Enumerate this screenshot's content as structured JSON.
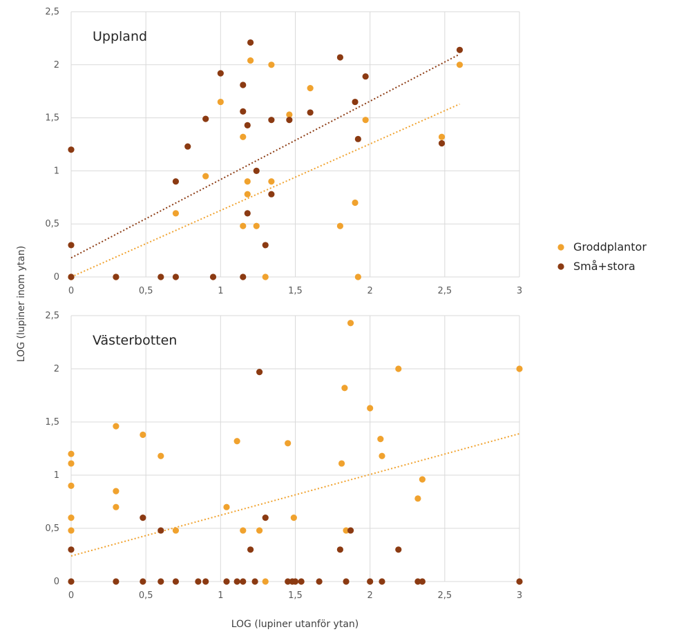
{
  "chart_data": {
    "type": "scatter",
    "xlabel": "LOG (lupiner utanför ytan)",
    "ylabel": "LOG (lupiner inom ytan)",
    "legend": {
      "placement": "right",
      "entries": [
        {
          "name": "Groddplantor",
          "color": "#F0A22E"
        },
        {
          "name": "Små+stora",
          "color": "#8B3A12"
        }
      ]
    },
    "grid": true,
    "panels": [
      {
        "title": "Uppland",
        "xlim": [
          0,
          3
        ],
        "ylim": [
          0,
          2.5
        ],
        "x_ticks": [
          "0",
          "0,5",
          "1",
          "1,5",
          "2",
          "2,5",
          "3"
        ],
        "y_ticks": [
          "0",
          "0,5",
          "1",
          "1,5",
          "2",
          "2,5"
        ],
        "series": [
          {
            "name": "Groddplantor",
            "color": "#F0A22E",
            "points": [
              [
                0,
                0
              ],
              [
                0.3,
                0
              ],
              [
                0.7,
                0.6
              ],
              [
                0.9,
                0.95
              ],
              [
                1,
                1.65
              ],
              [
                1.15,
                1.32
              ],
              [
                1.15,
                0.48
              ],
              [
                1.18,
                0.9
              ],
              [
                1.18,
                0.78
              ],
              [
                1.2,
                2.04
              ],
              [
                1.24,
                0.48
              ],
              [
                1.3,
                0
              ],
              [
                1.34,
                2.0
              ],
              [
                1.34,
                0.9
              ],
              [
                1.46,
                1.53
              ],
              [
                1.6,
                1.78
              ],
              [
                1.8,
                0.48
              ],
              [
                1.9,
                0.7
              ],
              [
                1.92,
                0
              ],
              [
                1.97,
                1.48
              ],
              [
                2.48,
                1.32
              ],
              [
                2.6,
                2.0
              ]
            ],
            "trendline": [
              [
                0,
                0
              ],
              [
                2.6,
                1.63
              ]
            ]
          },
          {
            "name": "Små+stora",
            "color": "#8B3A12",
            "points": [
              [
                0,
                1.2
              ],
              [
                0,
                0.3
              ],
              [
                0,
                0
              ],
              [
                0.3,
                0
              ],
              [
                0.6,
                0
              ],
              [
                0.7,
                0.9
              ],
              [
                0.7,
                0
              ],
              [
                0.78,
                1.23
              ],
              [
                0.9,
                1.49
              ],
              [
                0.95,
                0
              ],
              [
                1,
                1.92
              ],
              [
                1.15,
                1.81
              ],
              [
                1.15,
                1.56
              ],
              [
                1.15,
                0
              ],
              [
                1.18,
                1.43
              ],
              [
                1.18,
                0.6
              ],
              [
                1.2,
                2.21
              ],
              [
                1.24,
                1.0
              ],
              [
                1.3,
                0.3
              ],
              [
                1.34,
                1.48
              ],
              [
                1.34,
                0.78
              ],
              [
                1.46,
                1.48
              ],
              [
                1.6,
                1.55
              ],
              [
                1.8,
                2.07
              ],
              [
                1.9,
                1.65
              ],
              [
                1.92,
                1.3
              ],
              [
                1.97,
                1.89
              ],
              [
                2.48,
                1.26
              ],
              [
                2.6,
                2.14
              ]
            ],
            "trendline": [
              [
                0,
                0.18
              ],
              [
                2.6,
                2.1
              ]
            ]
          }
        ]
      },
      {
        "title": "Västerbotten",
        "xlim": [
          0,
          3
        ],
        "ylim": [
          0,
          2.5
        ],
        "x_ticks": [
          "0",
          "0,5",
          "1",
          "1,5",
          "2",
          "2,5",
          "3"
        ],
        "y_ticks": [
          "0",
          "0,5",
          "1",
          "1,5",
          "2",
          "2,5"
        ],
        "series": [
          {
            "name": "Groddplantor",
            "color": "#F0A22E",
            "points": [
              [
                0,
                1.2
              ],
              [
                0,
                1.11
              ],
              [
                0,
                0.9
              ],
              [
                0,
                0.6
              ],
              [
                0,
                0.48
              ],
              [
                0.3,
                1.46
              ],
              [
                0.3,
                0.85
              ],
              [
                0.3,
                0.7
              ],
              [
                0.48,
                1.38
              ],
              [
                0.6,
                1.18
              ],
              [
                0.7,
                0.48
              ],
              [
                1.04,
                0.7
              ],
              [
                1.11,
                1.32
              ],
              [
                1.15,
                0.48
              ],
              [
                1.26,
                0.48
              ],
              [
                1.3,
                0
              ],
              [
                1.45,
                1.3
              ],
              [
                1.49,
                0.6
              ],
              [
                1.81,
                1.11
              ],
              [
                1.83,
                1.82
              ],
              [
                1.84,
                0.48
              ],
              [
                1.87,
                2.43
              ],
              [
                2,
                1.63
              ],
              [
                2.07,
                1.34
              ],
              [
                2.08,
                1.18
              ],
              [
                2.19,
                2.0
              ],
              [
                2.32,
                0.78
              ],
              [
                2.35,
                0.96
              ],
              [
                3,
                2.0
              ]
            ],
            "trendline": [
              [
                0,
                0.24
              ],
              [
                3,
                1.39
              ]
            ]
          },
          {
            "name": "Små+stora",
            "color": "#8B3A12",
            "points": [
              [
                0,
                0.3
              ],
              [
                0,
                0
              ],
              [
                0.3,
                0
              ],
              [
                0.48,
                0.6
              ],
              [
                0.48,
                0
              ],
              [
                0.6,
                0.48
              ],
              [
                0.6,
                0
              ],
              [
                0.7,
                0
              ],
              [
                0.85,
                0
              ],
              [
                0.9,
                0
              ],
              [
                1.04,
                0
              ],
              [
                1.11,
                0
              ],
              [
                1.15,
                0
              ],
              [
                1.2,
                0.3
              ],
              [
                1.23,
                0
              ],
              [
                1.26,
                1.97
              ],
              [
                1.3,
                0.6
              ],
              [
                1.45,
                0
              ],
              [
                1.48,
                0
              ],
              [
                1.5,
                0
              ],
              [
                1.54,
                0
              ],
              [
                1.66,
                0
              ],
              [
                1.8,
                0.3
              ],
              [
                1.84,
                0
              ],
              [
                1.87,
                0.48
              ],
              [
                2,
                0
              ],
              [
                2.08,
                0
              ],
              [
                2.19,
                0.3
              ],
              [
                2.32,
                0
              ],
              [
                2.35,
                0
              ],
              [
                3,
                0
              ]
            ]
          }
        ]
      }
    ]
  }
}
